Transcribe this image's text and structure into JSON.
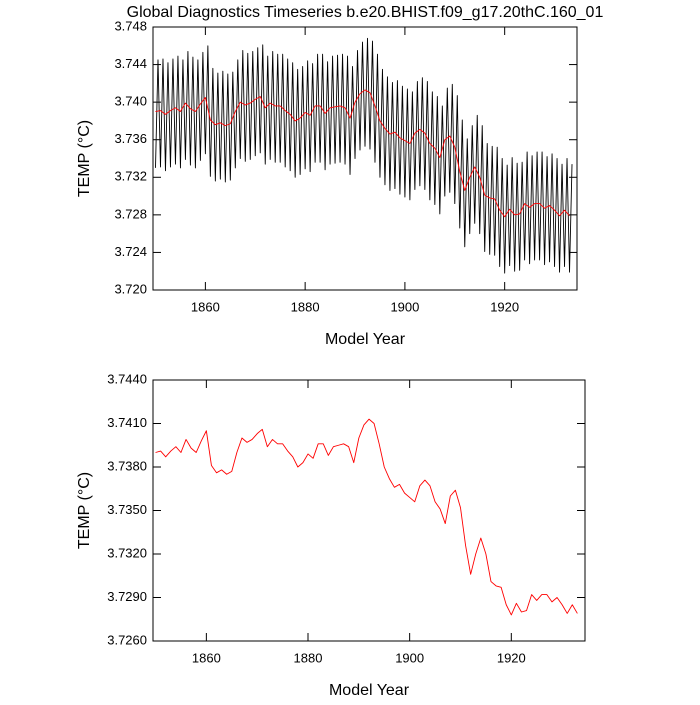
{
  "chart_data": [
    {
      "type": "line",
      "title": "Global Diagnostics Timeseries b.e20.BHIST.f09_g17.20thC.160_01",
      "x_label": "Model Year",
      "y_label": "TEMP (°C)",
      "xlim": [
        1849.5,
        1934.5
      ],
      "xticks": [
        1860,
        1880,
        1900,
        1920
      ],
      "ylim": [
        3.72,
        3.748
      ],
      "yticks": [
        {
          "value": 3.72,
          "label": "3.720"
        },
        {
          "value": 3.724,
          "label": "3.724"
        },
        {
          "value": 3.728,
          "label": "3.728"
        },
        {
          "value": 3.732,
          "label": "3.732"
        },
        {
          "value": 3.736,
          "label": "3.736"
        },
        {
          "value": 3.74,
          "label": "3.740"
        },
        {
          "value": 3.744,
          "label": "3.744"
        },
        {
          "value": 3.748,
          "label": "3.748"
        }
      ],
      "series": [
        {
          "color": "#000000",
          "x": [
            1850,
            1850.5,
            1851,
            1851.5,
            1852,
            1852.5,
            1853,
            1853.5,
            1854,
            1854.5,
            1855,
            1855.5,
            1856,
            1856.5,
            1857,
            1857.5,
            1858,
            1858.5,
            1859,
            1859.5,
            1860,
            1860.5,
            1861,
            1861.5,
            1862,
            1862.5,
            1863,
            1863.5,
            1864,
            1864.5,
            1865,
            1865.5,
            1866,
            1866.5,
            1867,
            1867.5,
            1868,
            1868.5,
            1869,
            1869.5,
            1870,
            1870.5,
            1871,
            1871.5,
            1872,
            1872.5,
            1873,
            1873.5,
            1874,
            1874.5,
            1875,
            1875.5,
            1876,
            1876.5,
            1877,
            1877.5,
            1878,
            1878.5,
            1879,
            1879.5,
            1880,
            1880.5,
            1881,
            1881.5,
            1882,
            1882.5,
            1883,
            1883.5,
            1884,
            1884.5,
            1885,
            1885.5,
            1886,
            1886.5,
            1887,
            1887.5,
            1888,
            1888.5,
            1889,
            1889.5,
            1890,
            1890.5,
            1891,
            1891.5,
            1892,
            1892.5,
            1893,
            1893.5,
            1894,
            1894.5,
            1895,
            1895.5,
            1896,
            1896.5,
            1897,
            1897.5,
            1898,
            1898.5,
            1899,
            1899.5,
            1900,
            1900.5,
            1901,
            1901.5,
            1902,
            1902.5,
            1903,
            1903.5,
            1904,
            1904.5,
            1905,
            1905.5,
            1906,
            1906.5,
            1907,
            1907.5,
            1908,
            1908.5,
            1909,
            1909.5,
            1910,
            1910.5,
            1911,
            1911.5,
            1912,
            1912.5,
            1913,
            1913.5,
            1914,
            1914.5,
            1915,
            1915.5,
            1916,
            1916.5,
            1917,
            1917.5,
            1918,
            1918.5,
            1919,
            1919.5,
            1920,
            1920.5,
            1921,
            1921.5,
            1922,
            1922.5,
            1923,
            1923.5,
            1924,
            1924.5,
            1925,
            1925.5,
            1926,
            1926.5,
            1927,
            1927.5,
            1928,
            1928.5,
            1929,
            1929.5,
            1930,
            1930.5,
            1931,
            1931.5,
            1932,
            1932.5,
            1933,
            1933.5
          ],
          "values": [
            3.733,
            3.7445,
            3.7331,
            3.7446,
            3.7327,
            3.7442,
            3.7331,
            3.7446,
            3.7334,
            3.7449,
            3.733,
            3.7445,
            3.7339,
            3.7454,
            3.7333,
            3.7448,
            3.733,
            3.7445,
            3.7338,
            3.7453,
            3.7345,
            3.746,
            3.7321,
            3.7436,
            3.7316,
            3.7431,
            3.7318,
            3.7433,
            3.7315,
            3.743,
            3.7317,
            3.7432,
            3.733,
            3.7445,
            3.734,
            3.7455,
            3.7337,
            3.7452,
            3.7339,
            3.7454,
            3.7343,
            3.7458,
            3.7346,
            3.7461,
            3.7334,
            3.7449,
            3.7339,
            3.7454,
            3.7336,
            3.7451,
            3.7336,
            3.7451,
            3.7331,
            3.7446,
            3.7327,
            3.7442,
            3.732,
            3.7435,
            3.7323,
            3.7438,
            3.7329,
            3.7444,
            3.7326,
            3.7441,
            3.7336,
            3.7451,
            3.7336,
            3.7451,
            3.7328,
            3.7443,
            3.7334,
            3.7449,
            3.7335,
            3.745,
            3.7336,
            3.7451,
            3.7334,
            3.7449,
            3.7323,
            3.7438,
            3.734,
            3.7455,
            3.7349,
            3.7464,
            3.7353,
            3.7468,
            3.735,
            3.7465,
            3.7336,
            3.7451,
            3.732,
            3.7435,
            3.7312,
            3.7427,
            3.7306,
            3.7421,
            3.7308,
            3.7423,
            3.7302,
            3.7417,
            3.7299,
            3.7414,
            3.7296,
            3.7411,
            3.7307,
            3.7422,
            3.7311,
            3.7426,
            3.7307,
            3.7422,
            3.7296,
            3.7411,
            3.7291,
            3.7406,
            3.7281,
            3.7396,
            3.73,
            3.7415,
            3.7304,
            3.7419,
            3.7292,
            3.7407,
            3.7266,
            3.7381,
            3.7246,
            3.7361,
            3.726,
            3.7375,
            3.7271,
            3.7386,
            3.726,
            3.7375,
            3.7241,
            3.7356,
            3.7238,
            3.7353,
            3.7237,
            3.7352,
            3.7225,
            3.734,
            3.7218,
            3.7333,
            3.7226,
            3.7341,
            3.722,
            3.7335,
            3.7221,
            3.7336,
            3.7232,
            3.7347,
            3.7228,
            3.7343,
            3.7232,
            3.7347,
            3.7232,
            3.7347,
            3.7227,
            3.7342,
            3.723,
            3.7345,
            3.7225,
            3.734,
            3.7219,
            3.7334,
            3.7225,
            3.734,
            3.7219,
            3.7334
          ]
        },
        {
          "color": "#ff0000",
          "x": [
            1850,
            1851,
            1852,
            1853,
            1854,
            1855,
            1856,
            1857,
            1858,
            1859,
            1860,
            1861,
            1862,
            1863,
            1864,
            1865,
            1866,
            1867,
            1868,
            1869,
            1870,
            1871,
            1872,
            1873,
            1874,
            1875,
            1876,
            1877,
            1878,
            1879,
            1880,
            1881,
            1882,
            1883,
            1884,
            1885,
            1886,
            1887,
            1888,
            1889,
            1890,
            1891,
            1892,
            1893,
            1894,
            1895,
            1896,
            1897,
            1898,
            1899,
            1900,
            1901,
            1902,
            1903,
            1904,
            1905,
            1906,
            1907,
            1908,
            1909,
            1910,
            1911,
            1912,
            1913,
            1914,
            1915,
            1916,
            1917,
            1918,
            1919,
            1920,
            1921,
            1922,
            1923,
            1924,
            1925,
            1926,
            1927,
            1928,
            1929,
            1930,
            1931,
            1932,
            1933
          ],
          "values": [
            3.739,
            3.7391,
            3.7387,
            3.7391,
            3.7394,
            3.739,
            3.7399,
            3.7393,
            3.739,
            3.7398,
            3.7405,
            3.7381,
            3.7376,
            3.7378,
            3.7375,
            3.7377,
            3.739,
            3.74,
            3.7397,
            3.7399,
            3.7403,
            3.7406,
            3.7394,
            3.7399,
            3.7396,
            3.7396,
            3.7391,
            3.7387,
            3.738,
            3.7383,
            3.7389,
            3.7386,
            3.7396,
            3.7396,
            3.7388,
            3.7394,
            3.7395,
            3.7396,
            3.7394,
            3.7383,
            3.74,
            3.7409,
            3.7413,
            3.741,
            3.7396,
            3.738,
            3.7372,
            3.7366,
            3.7368,
            3.7362,
            3.7359,
            3.7356,
            3.7367,
            3.7371,
            3.7367,
            3.7356,
            3.7351,
            3.7341,
            3.736,
            3.7364,
            3.7352,
            3.7326,
            3.7306,
            3.732,
            3.7331,
            3.732,
            3.7301,
            3.7298,
            3.7297,
            3.7285,
            3.7278,
            3.7286,
            3.728,
            3.7281,
            3.7292,
            3.7288,
            3.7292,
            3.7292,
            3.7287,
            3.729,
            3.7285,
            3.7279,
            3.7285,
            3.7279
          ]
        }
      ]
    },
    {
      "type": "line",
      "x_label": "Model Year",
      "y_label": "TEMP (°C)",
      "xlim": [
        1849.5,
        1934.5
      ],
      "xticks": [
        1860,
        1880,
        1900,
        1920
      ],
      "ylim": [
        3.726,
        3.744
      ],
      "yticks": [
        {
          "value": 3.726,
          "label": "3.7260"
        },
        {
          "value": 3.729,
          "label": "3.7290"
        },
        {
          "value": 3.732,
          "label": "3.7320"
        },
        {
          "value": 3.735,
          "label": "3.7350"
        },
        {
          "value": 3.738,
          "label": "3.7380"
        },
        {
          "value": 3.741,
          "label": "3.7410"
        },
        {
          "value": 3.744,
          "label": "3.7440"
        }
      ],
      "series": [
        {
          "color": "#ff0000",
          "x": [
            1850,
            1851,
            1852,
            1853,
            1854,
            1855,
            1856,
            1857,
            1858,
            1859,
            1860,
            1861,
            1862,
            1863,
            1864,
            1865,
            1866,
            1867,
            1868,
            1869,
            1870,
            1871,
            1872,
            1873,
            1874,
            1875,
            1876,
            1877,
            1878,
            1879,
            1880,
            1881,
            1882,
            1883,
            1884,
            1885,
            1886,
            1887,
            1888,
            1889,
            1890,
            1891,
            1892,
            1893,
            1894,
            1895,
            1896,
            1897,
            1898,
            1899,
            1900,
            1901,
            1902,
            1903,
            1904,
            1905,
            1906,
            1907,
            1908,
            1909,
            1910,
            1911,
            1912,
            1913,
            1914,
            1915,
            1916,
            1917,
            1918,
            1919,
            1920,
            1921,
            1922,
            1923,
            1924,
            1925,
            1926,
            1927,
            1928,
            1929,
            1930,
            1931,
            1932,
            1933
          ],
          "values": [
            3.739,
            3.7391,
            3.7387,
            3.7391,
            3.7394,
            3.739,
            3.7399,
            3.7393,
            3.739,
            3.7398,
            3.7405,
            3.7381,
            3.7376,
            3.7378,
            3.7375,
            3.7377,
            3.739,
            3.74,
            3.7397,
            3.7399,
            3.7403,
            3.7406,
            3.7394,
            3.7399,
            3.7396,
            3.7396,
            3.7391,
            3.7387,
            3.738,
            3.7383,
            3.7389,
            3.7386,
            3.7396,
            3.7396,
            3.7388,
            3.7394,
            3.7395,
            3.7396,
            3.7394,
            3.7383,
            3.74,
            3.7409,
            3.7413,
            3.741,
            3.7396,
            3.738,
            3.7372,
            3.7366,
            3.7368,
            3.7362,
            3.7359,
            3.7356,
            3.7367,
            3.7371,
            3.7367,
            3.7356,
            3.7351,
            3.7341,
            3.736,
            3.7364,
            3.7352,
            3.7326,
            3.7306,
            3.732,
            3.7331,
            3.732,
            3.7301,
            3.7298,
            3.7297,
            3.7285,
            3.7278,
            3.7286,
            3.728,
            3.7281,
            3.7292,
            3.7288,
            3.7292,
            3.7292,
            3.7287,
            3.729,
            3.7285,
            3.7279,
            3.7285,
            3.7279
          ]
        }
      ]
    }
  ]
}
